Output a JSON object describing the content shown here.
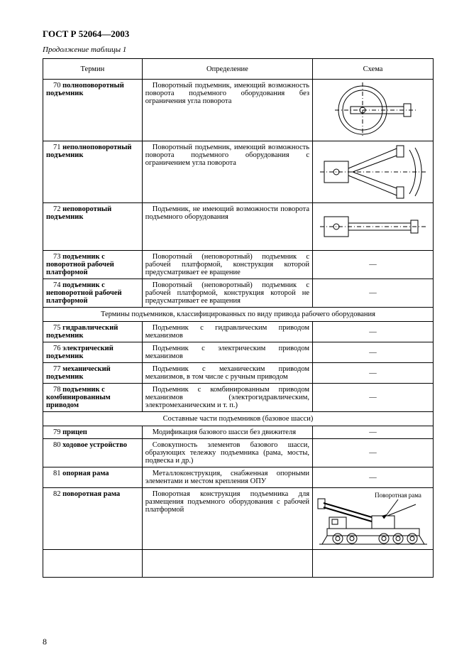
{
  "docTitle": "ГОСТ Р 52064—2003",
  "caption": "Продолжение таблицы 1",
  "headers": {
    "term": "Термин",
    "def": "Определение",
    "scheme": "Схема"
  },
  "rows": [
    {
      "num": "70",
      "term": "полноповоротный подъемник",
      "def": "Поворотный подъемник, имеющий возможность поворота подъемного оборудования без ограничения угла поворота",
      "scheme": "svg-full-rotate"
    },
    {
      "num": "71",
      "term": "неполноповоротный подъемник",
      "def": "Поворотный подъемник, имеющий возможность поворота подъемного оборудования с ограничением угла поворота",
      "scheme": "svg-part-rotate"
    },
    {
      "num": "72",
      "term": "неповоротный подъемник",
      "def": "Подъемник, не имеющий возможности поворота подъемного оборудования",
      "scheme": "svg-no-rotate"
    },
    {
      "num": "73",
      "term": "подъемник с поворотной рабочей платформой",
      "def": "Поворотный (неповоротный) подъемник с рабочей платформой, конструкция которой предусматривает ее вращение",
      "scheme": "dash"
    },
    {
      "num": "74",
      "term": "подъемник с неповоротной рабочей платформой",
      "def": "Поворотный (неповоротный) подъемник с рабочей платформой, конструкция которой не предусматривает ее вращения",
      "scheme": "dash"
    }
  ],
  "section1": "Термины подъемников, классифицированных по виду привода рабочего оборудования",
  "rows2": [
    {
      "num": "75",
      "term": "гидравлический подъемник",
      "def": "Подъемник с гидравлическим приводом механизмов",
      "scheme": "dash"
    },
    {
      "num": "76",
      "term": "электрический подъемник",
      "def": "Подъемник с электрическим приводом механизмов",
      "scheme": "dash"
    },
    {
      "num": "77",
      "term": "механический подъемник",
      "def": "Подъемник с механическим приводом механизмов, в том числе с ручным приводом",
      "scheme": "dash"
    },
    {
      "num": "78",
      "term": "подъемник с комбинированным приводом",
      "def": "Подъемник с комбинированным приводом механизмов (электрогидравлическим, электромеханическим и т. п.)",
      "scheme": "dash"
    }
  ],
  "section2": "Составные части подъемников (базовое шасси)",
  "rows3": [
    {
      "num": "79",
      "term": "прицеп",
      "def": "Модификация базового шасси без движителя",
      "scheme": "dash"
    },
    {
      "num": "80",
      "term": "ходовое устройство",
      "def": "Совокупность элементов базового шасси, образующих тележку подъемника (рама, мосты, подвеска и др.)",
      "scheme": "dash"
    },
    {
      "num": "81",
      "term": "опорная рама",
      "def": "Металлоконструкция, снабженная опорными элементами и местом крепления ОПУ",
      "scheme": "dash"
    },
    {
      "num": "82",
      "term": "поворотная рама",
      "def": "Поворотная конструкция подъемника для размещения подъемного оборудования с рабочей платформой",
      "scheme": "svg-truck"
    }
  ],
  "pageNum": "8",
  "truckLabel": "Поворотная рама",
  "colWidths": {
    "term": 130,
    "def": 230,
    "scheme": 160
  },
  "svg": {
    "stroke": "#000",
    "fill": "none",
    "strokeWidth": 1
  }
}
